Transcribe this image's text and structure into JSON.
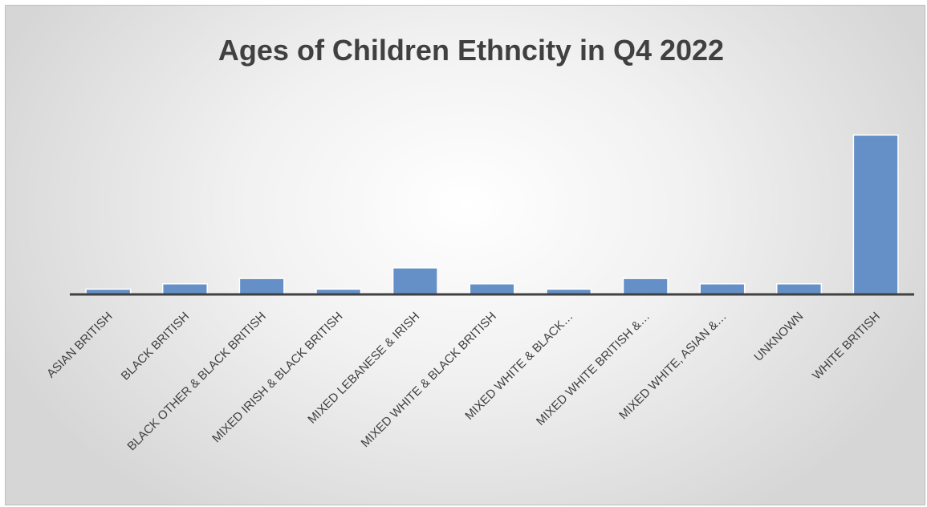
{
  "chart_data": {
    "type": "bar",
    "title": "Ages of Children Ethncity in Q4 2022",
    "xlabel": "",
    "ylabel": "",
    "categories": [
      "ASIAN BRITISH",
      "BLACK BRITISH",
      "BLACK OTHER & BLACK BRITISH",
      "MIXED IRISH & BLACK BRITISH",
      "MIXED LEBANESE & IRISH",
      "MIXED WHITE & BLACK BRITISH",
      "MIXED WHITE & BLACK…",
      "MIXED WHITE BRITISH &…",
      "MIXED WHITE, ASIAN &…",
      "UNKNOWN",
      "WHITE BRITISH"
    ],
    "values": [
      1,
      2,
      3,
      1,
      5,
      2,
      1,
      3,
      2,
      2,
      30
    ],
    "ylim": [
      0,
      32
    ],
    "grid": false,
    "legend": "none",
    "colors": {
      "bar": "#6490c7",
      "bar_edge": "#5a83b8",
      "axis": "#404040",
      "text": "#404040"
    }
  }
}
